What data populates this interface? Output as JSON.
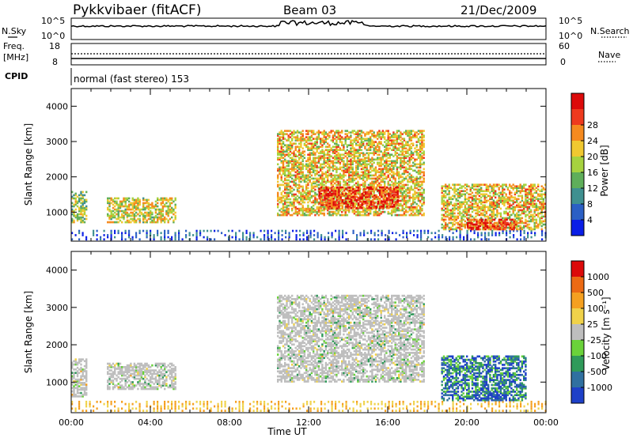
{
  "header": {
    "radar": "Pykkvibaer (fitACF)",
    "beam": "Beam 03",
    "date": "21/Dec/2009",
    "cpid_label": "CPID",
    "cpid_text": "normal (fast stereo) 153"
  },
  "strip_nsky": {
    "left_label": "N.Sky",
    "right_label": "N.Search",
    "left_top": "10^5",
    "left_bottom": "10^0",
    "right_top": "10^5",
    "right_bottom": "10^0"
  },
  "strip_freq": {
    "left_label_1": "Freq.",
    "left_label_2": "[MHz]",
    "left_top": "18",
    "left_bottom": "8",
    "right_label": "Nave",
    "right_top": "60",
    "right_bottom": "0"
  },
  "chart_data": [
    {
      "type": "heatmap",
      "panel": "power",
      "ylabel": "Slant Range [km]",
      "ylim": [
        180,
        4500
      ],
      "yticks": [
        "1000",
        "2000",
        "3000",
        "4000"
      ],
      "xlim_hours": [
        0,
        24
      ],
      "colorbar_label": "Power [dB]",
      "colorbar_ticks": [
        "4",
        "8",
        "12",
        "16",
        "20",
        "24",
        "28"
      ],
      "colorbar_colors": [
        "#0a1ee6",
        "#2b5fc4",
        "#3f9090",
        "#5fae5a",
        "#a6d23f",
        "#f0c830",
        "#f58a1f",
        "#ee3a1e",
        "#dc0a0a"
      ],
      "echo_regions": [
        {
          "t0": 0.0,
          "t1": 0.8,
          "r0": 700,
          "r1": 1600,
          "level": 0.45
        },
        {
          "t0": 1.8,
          "t1": 5.3,
          "r0": 700,
          "r1": 1400,
          "level": 0.55
        },
        {
          "t0": 10.4,
          "t1": 17.8,
          "r0": 900,
          "r1": 3300,
          "level": 0.6
        },
        {
          "t0": 12.5,
          "t1": 16.5,
          "r0": 1100,
          "r1": 1700,
          "level": 0.85
        },
        {
          "t0": 18.7,
          "t1": 24.0,
          "r0": 500,
          "r1": 1800,
          "level": 0.6
        },
        {
          "t0": 20.0,
          "t1": 22.5,
          "r0": 500,
          "r1": 800,
          "level": 0.9
        }
      ]
    },
    {
      "type": "heatmap",
      "panel": "velocity",
      "ylabel": "Slant Range [km]",
      "ylim": [
        180,
        4500
      ],
      "yticks": [
        "1000",
        "2000",
        "3000",
        "4000"
      ],
      "xlim_hours": [
        0,
        24
      ],
      "xticks": [
        "00:00",
        "04:00",
        "08:00",
        "12:00",
        "16:00",
        "20:00",
        "00:00"
      ],
      "xlabel": "Time UT",
      "colorbar_label": "Velocity [m s⁻¹]",
      "colorbar_ticks": [
        "1000",
        "500",
        "100",
        "25",
        "-25",
        "-100",
        "-500",
        "-1000"
      ],
      "colorbar_colors": [
        "#1e40c8",
        "#3070a0",
        "#2f9a5a",
        "#6ad23a",
        "#bebebe",
        "#f0d24a",
        "#f5a020",
        "#ec6a14",
        "#dc0a0a"
      ],
      "echo_regions": [
        {
          "t0": 0.0,
          "t1": 0.8,
          "r0": 600,
          "r1": 1600,
          "level": 0.5
        },
        {
          "t0": 1.8,
          "t1": 5.3,
          "r0": 800,
          "r1": 1500,
          "level": 0.45
        },
        {
          "t0": 10.4,
          "t1": 17.8,
          "r0": 1000,
          "r1": 3300,
          "level": 0.45
        },
        {
          "t0": 18.7,
          "t1": 23.0,
          "r0": 500,
          "r1": 1700,
          "level": 0.2
        },
        {
          "t0": 20.5,
          "t1": 22.0,
          "r0": 500,
          "r1": 700,
          "level": 0.0
        }
      ]
    }
  ]
}
